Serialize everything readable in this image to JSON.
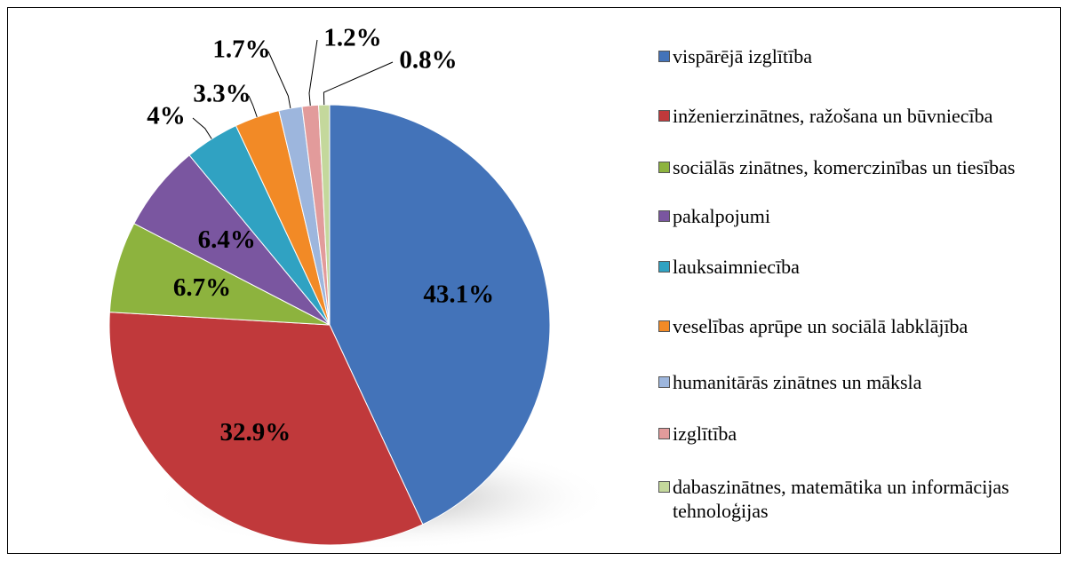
{
  "chart_data": {
    "type": "pie",
    "categories": [
      "vispārējā izglītība",
      "inženierzinātnes, ražošana un būvniecība",
      "sociālās zinātnes, komerczinības un tiesības",
      "pakalpojumi",
      "lauksaimniecība",
      "veselības aprūpe un sociālā labklājība",
      "humanitārās zinātnes un māksla",
      "izglītība",
      "dabaszinātnes, matemātika un informācijas tehnoloģijas"
    ],
    "values": [
      43.1,
      32.9,
      6.7,
      6.4,
      4,
      3.3,
      1.7,
      1.2,
      0.8
    ],
    "value_labels": [
      "43.1%",
      "32.9%",
      "6.7%",
      "6.4%",
      "4%",
      "3.3%",
      "1.7%",
      "1.2%",
      "0.8%"
    ],
    "colors": [
      "#4373b9",
      "#c0393b",
      "#8db33e",
      "#7a56a0",
      "#30a2c2",
      "#f28a26",
      "#9db6dd",
      "#e29b9b",
      "#c4d89c"
    ],
    "legend": "right"
  }
}
